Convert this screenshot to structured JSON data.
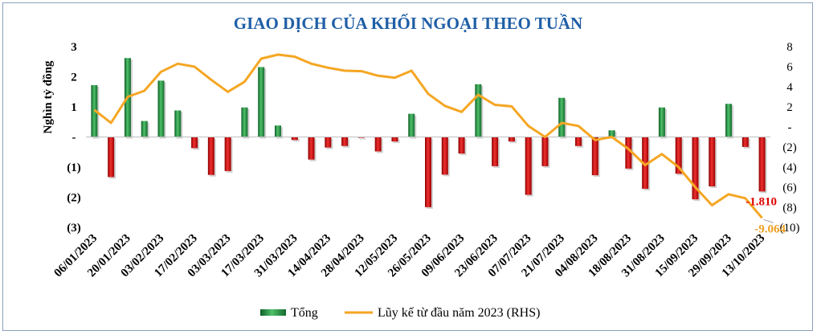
{
  "chart_data": {
    "type": "bar+line",
    "title": "GIAO DỊCH CỦA KHỐI NGOẠI THEO TUẦN",
    "ylabel": "Nghìn tỷ đồng",
    "ylim": [
      -3,
      3
    ],
    "y2lim": [
      -10,
      8
    ],
    "left_ticks": [
      "3",
      "2",
      "1",
      "-",
      "(1)",
      "(2)",
      "(3)"
    ],
    "right_ticks": [
      "8",
      "6",
      "4",
      "2",
      "-",
      "(2)",
      "(4)",
      "(6)",
      "(8)",
      "(10)"
    ],
    "x_tick_labels": [
      "06/01/2023",
      "20/01/2023",
      "03/02/2023",
      "17/02/2023",
      "03/03/2023",
      "17/03/2023",
      "31/03/2023",
      "14/04/2023",
      "28/04/2023",
      "12/05/2023",
      "26/05/2023",
      "09/06/2023",
      "23/06/2023",
      "07/07/2023",
      "21/07/2023",
      "04/08/2023",
      "18/08/2023",
      "31/08/2023",
      "15/09/2023",
      "29/09/2023",
      "13/10/2023"
    ],
    "series": [
      {
        "name": "Tổng",
        "kind": "bar",
        "values": [
          1.72,
          -1.33,
          2.62,
          0.53,
          1.87,
          0.88,
          -0.37,
          -1.26,
          -1.13,
          0.98,
          2.32,
          0.38,
          -0.1,
          -0.75,
          -0.35,
          -0.3,
          -0.03,
          -0.48,
          -0.15,
          0.77,
          -2.33,
          -1.25,
          -0.55,
          1.75,
          -0.97,
          -0.15,
          -1.92,
          -0.97,
          1.3,
          -0.3,
          -1.27,
          0.22,
          -1.05,
          -1.72,
          0.98,
          -1.22,
          -2.07,
          -1.64,
          1.1,
          -0.33,
          -1.81
        ]
      },
      {
        "name": "Lũy kế từ đầu năm 2023 (RHS)",
        "kind": "line",
        "axis": "right",
        "values": [
          1.7,
          0.4,
          3.0,
          3.6,
          5.5,
          6.3,
          6.0,
          4.7,
          3.5,
          4.5,
          6.8,
          7.2,
          7.0,
          6.3,
          5.9,
          5.6,
          5.55,
          5.1,
          4.9,
          5.6,
          3.3,
          2.1,
          1.5,
          3.2,
          2.2,
          2.05,
          0.1,
          -1.0,
          0.4,
          0.1,
          -1.3,
          -1.0,
          -2.2,
          -3.8,
          -2.7,
          -4.0,
          -6.0,
          -7.8,
          -6.7,
          -7.1,
          -9.064
        ]
      }
    ],
    "annotations": {
      "last_bar": "-1.810",
      "last_line": "-9.064"
    },
    "colors": {
      "positive_bar": "#1e8a3c",
      "negative_bar": "#c00000",
      "line": "#f5a623",
      "title": "#1f5fa6"
    },
    "legend": {
      "placement": "bottom-center",
      "items": [
        "Tổng",
        "Lũy kế từ đầu năm 2023 (RHS)"
      ]
    }
  }
}
